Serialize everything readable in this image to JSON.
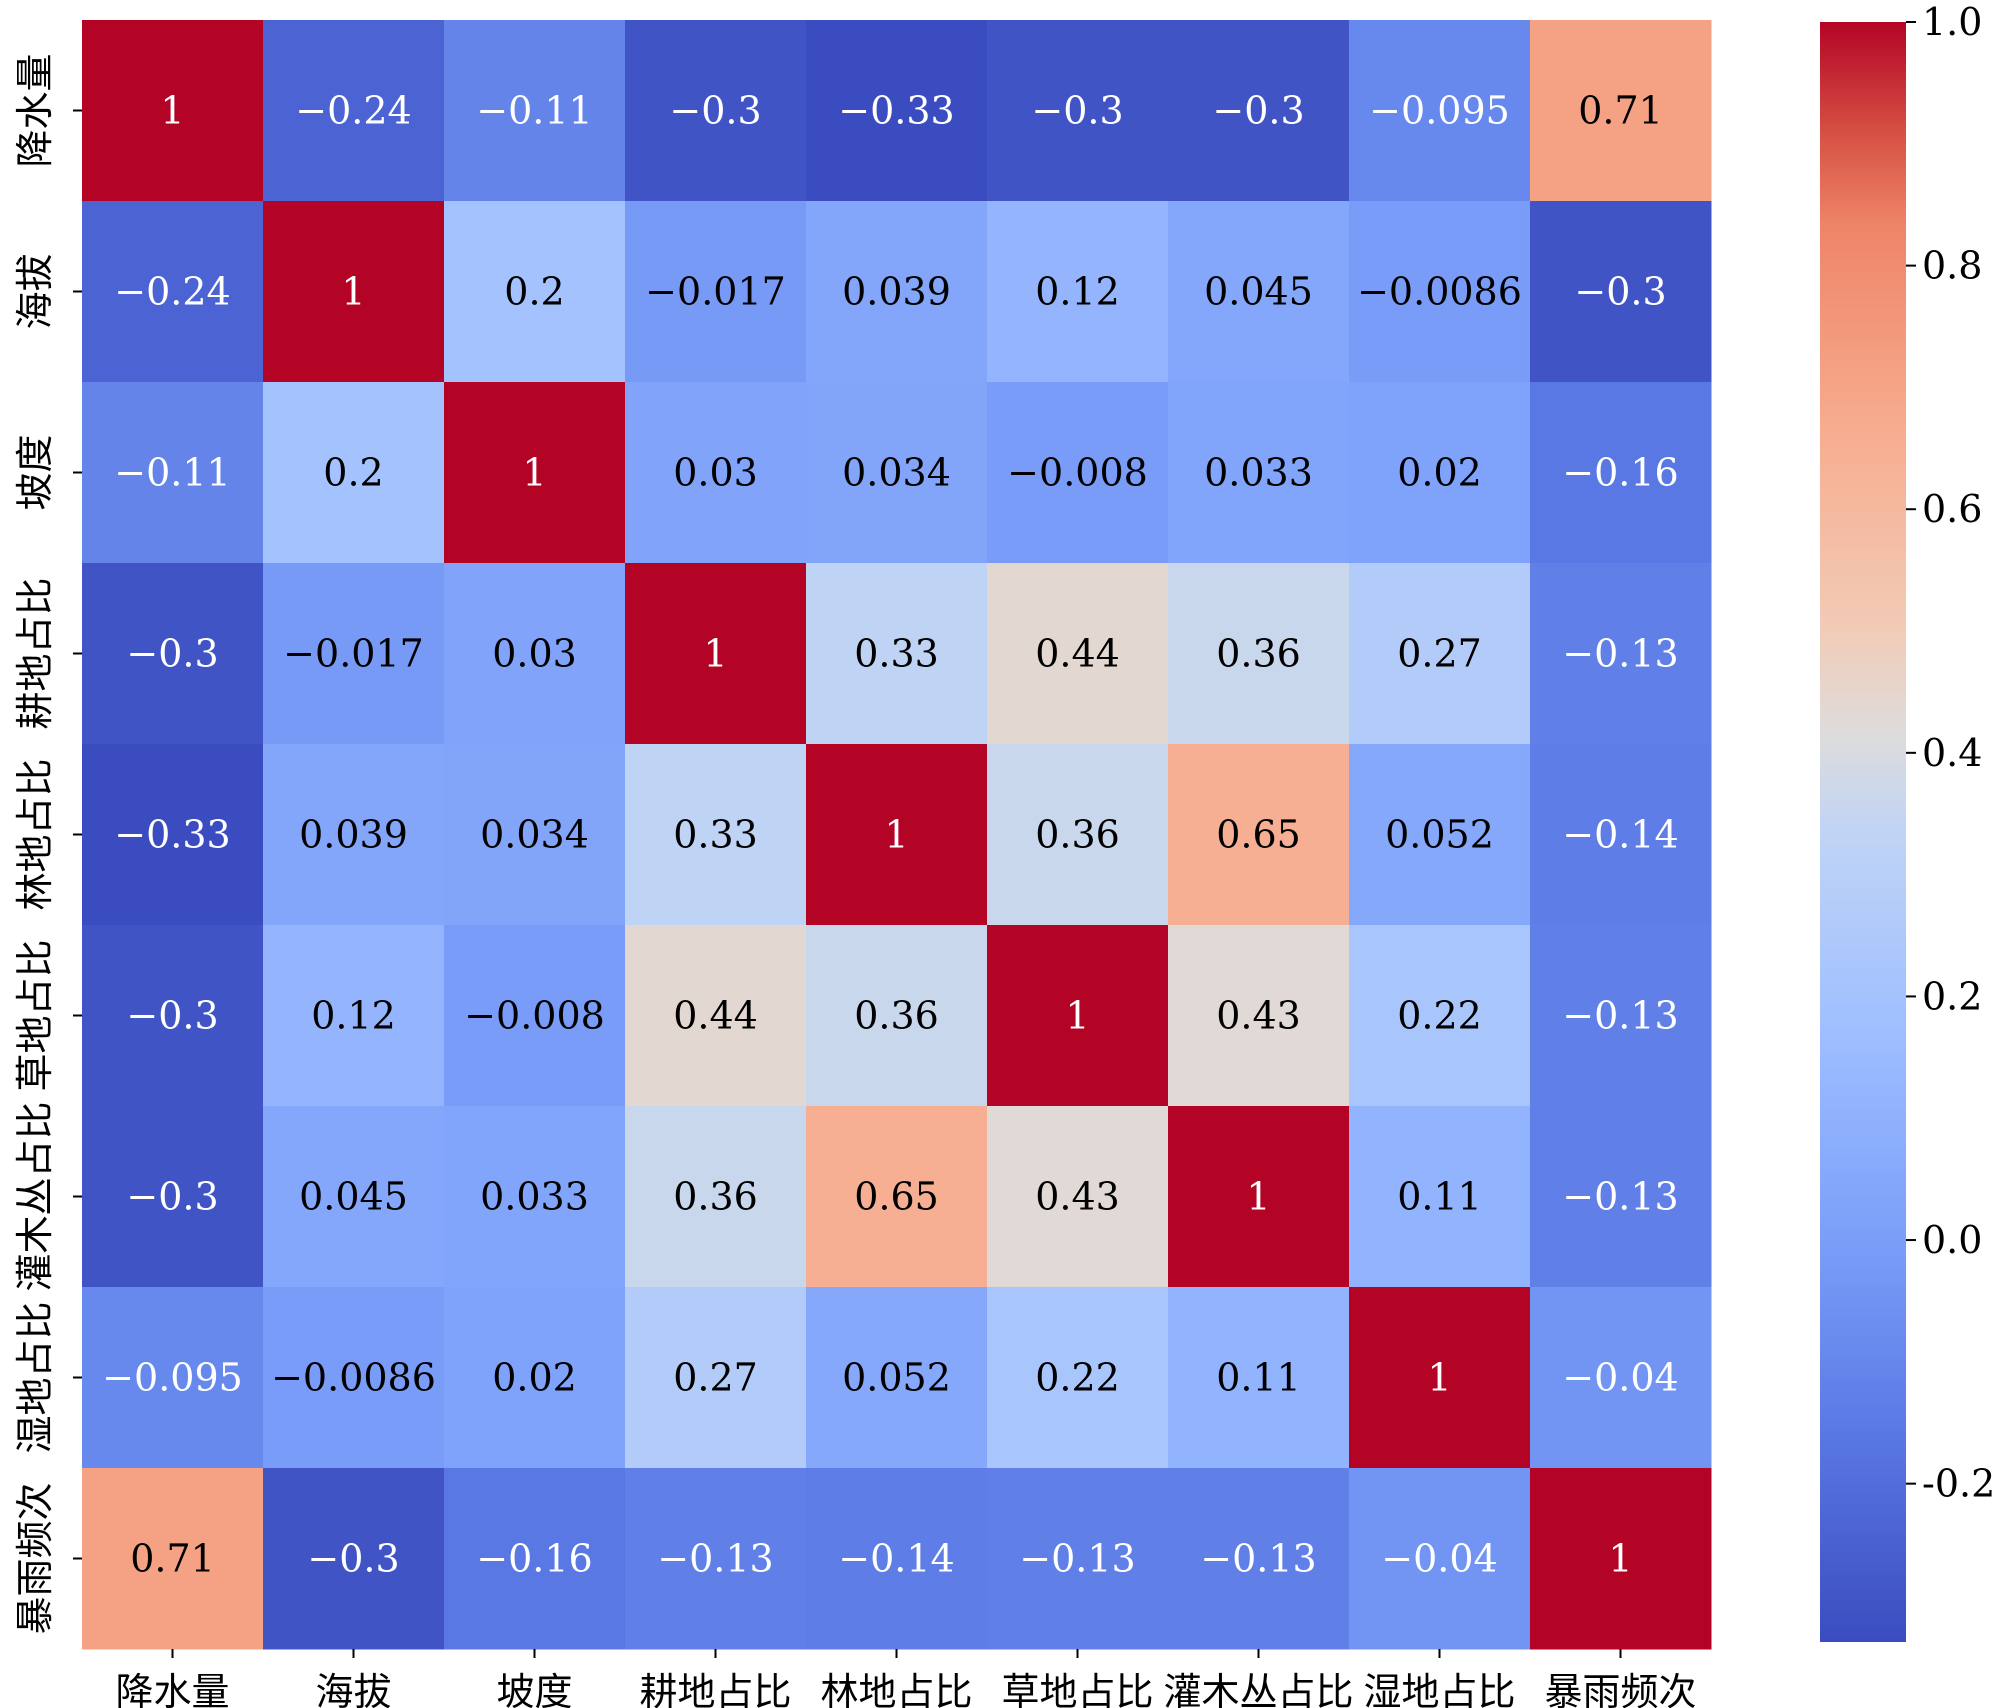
{
  "chart_data": {
    "type": "heatmap",
    "title": "",
    "xlabel": "",
    "ylabel": "",
    "labels": [
      "降水量",
      "海拔",
      "坡度",
      "耕地占比",
      "林地占比",
      "草地占比",
      "灌木丛占比",
      "湿地占比",
      "暴雨频次"
    ],
    "values": [
      [
        "1",
        "-0.24",
        "-0.11",
        "-0.3",
        "-0.33",
        "-0.3",
        "-0.3",
        "-0.095",
        "0.71"
      ],
      [
        "-0.24",
        "1",
        "0.2",
        "-0.017",
        "0.039",
        "0.12",
        "0.045",
        "-0.0086",
        "-0.3"
      ],
      [
        "-0.11",
        "0.2",
        "1",
        "0.03",
        "0.034",
        "-0.008",
        "0.033",
        "0.02",
        "-0.16"
      ],
      [
        "-0.3",
        "-0.017",
        "0.03",
        "1",
        "0.33",
        "0.44",
        "0.36",
        "0.27",
        "-0.13"
      ],
      [
        "-0.33",
        "0.039",
        "0.034",
        "0.33",
        "1",
        "0.36",
        "0.65",
        "0.052",
        "-0.14"
      ],
      [
        "-0.3",
        "0.12",
        "-0.008",
        "0.44",
        "0.36",
        "1",
        "0.43",
        "0.22",
        "-0.13"
      ],
      [
        "-0.3",
        "0.045",
        "0.033",
        "0.36",
        "0.65",
        "0.43",
        "1",
        "0.11",
        "-0.13"
      ],
      [
        "-0.095",
        "-0.0086",
        "0.02",
        "0.27",
        "0.052",
        "0.22",
        "0.11",
        "1",
        "-0.04"
      ],
      [
        "0.71",
        "-0.3",
        "-0.16",
        "-0.13",
        "-0.14",
        "-0.13",
        "-0.13",
        "-0.04",
        "1"
      ]
    ],
    "colormap": "coolwarm",
    "vmin": -0.33,
    "vmax": 1.0,
    "colorbar": {
      "ticks": [
        -0.2,
        0.0,
        0.2,
        0.4,
        0.6,
        0.8,
        1.0
      ],
      "tick_labels": [
        "-0.2",
        "0.0",
        "0.2",
        "0.4",
        "0.6",
        "0.8",
        "1.0"
      ]
    }
  }
}
